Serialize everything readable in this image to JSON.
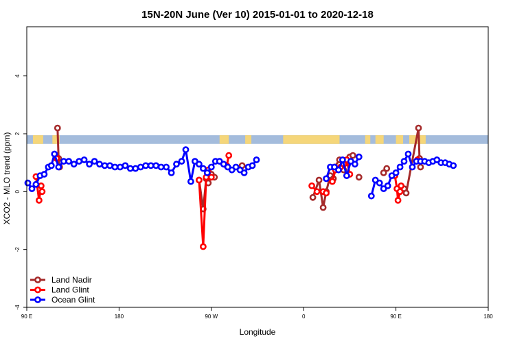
{
  "chart_data": {
    "type": "line",
    "title": "15N-20N June (Ver 10)   2015-01-01 to 2020-12-18",
    "xlabel": "Longitude",
    "ylabel": "XCO2 - MLO trend (ppm)",
    "x_ticks": [
      {
        "value": 90,
        "label": "90 E"
      },
      {
        "value": 180,
        "label": "180"
      },
      {
        "value": 270,
        "label": "90 W"
      },
      {
        "value": 360,
        "label": "0"
      },
      {
        "value": 450,
        "label": "90 E"
      },
      {
        "value": 540,
        "label": "180"
      }
    ],
    "y_ticks": [
      {
        "value": -4,
        "label": "-4"
      },
      {
        "value": -2,
        "label": "-2"
      },
      {
        "value": 0,
        "label": "0"
      },
      {
        "value": 2,
        "label": "2"
      },
      {
        "value": 4,
        "label": "4"
      }
    ],
    "xlim": [
      90,
      540
    ],
    "ylim": [
      -4,
      5.7
    ],
    "grid": false,
    "legend_position": "bottom-left",
    "land_strip": {
      "y_range": [
        1.65,
        1.95
      ],
      "ocean_color": "#a4bcdc",
      "land_color": "#f5d67a",
      "land_segments": [
        [
          96,
          106
        ],
        [
          115,
          122
        ],
        [
          278,
          287
        ],
        [
          303,
          309
        ],
        [
          340,
          395
        ],
        [
          420,
          425
        ],
        [
          430,
          438
        ],
        [
          450,
          457
        ],
        [
          463,
          479
        ]
      ]
    },
    "series": [
      {
        "name": "Land Nadir",
        "color": "#a52a2a",
        "segments": [
          [
            [
              120,
              2.2
            ],
            [
              121,
              1.15
            ],
            [
              122,
              0.85
            ]
          ],
          [
            [
              258,
              0.4
            ],
            [
              262,
              -0.6
            ],
            [
              265,
              0.45
            ],
            [
              267,
              0.3
            ],
            [
              270,
              0.6
            ],
            [
              273,
              0.5
            ]
          ],
          [
            [
              300,
              0.9
            ]
          ],
          [
            [
              369,
              -0.2
            ],
            [
              375,
              0.4
            ],
            [
              379,
              -0.55
            ],
            [
              382,
              0.0
            ],
            [
              386,
              0.55
            ],
            [
              389,
              0.45
            ],
            [
              390,
              0.85
            ],
            [
              395,
              1.1
            ],
            [
              399,
              0.75
            ],
            [
              402,
              1.0
            ],
            [
              405,
              1.2
            ],
            [
              408,
              1.25
            ]
          ],
          [
            [
              414,
              0.5
            ]
          ],
          [
            [
              438,
              0.65
            ],
            [
              441,
              0.8
            ]
          ],
          [
            [
              458,
              0.1
            ],
            [
              460,
              -0.05
            ],
            [
              472,
              2.2
            ],
            [
              473,
              1.15
            ],
            [
              474,
              0.85
            ]
          ]
        ]
      },
      {
        "name": "Land Glint",
        "color": "#ff0000",
        "segments": [
          [
            [
              99,
              0.52
            ],
            [
              102,
              -0.3
            ],
            [
              104,
              0.2
            ],
            [
              105,
              0.0
            ]
          ],
          [
            [
              119,
              1.15
            ]
          ],
          [
            [
              258,
              0.4
            ],
            [
              262,
              -1.9
            ],
            [
              265,
              0.5
            ],
            [
              267,
              0.75
            ],
            [
              270,
              0.5
            ]
          ],
          [
            [
              285,
              0.9
            ],
            [
              287,
              1.25
            ]
          ],
          [
            [
              368,
              0.2
            ],
            [
              373,
              0.0
            ],
            [
              379,
              0.0
            ],
            [
              382,
              -0.05
            ]
          ],
          [
            [
              388,
              0.35
            ],
            [
              391,
              0.75
            ]
          ],
          [
            [
              396,
              0.85
            ],
            [
              399,
              0.95
            ],
            [
              402,
              1.1
            ],
            [
              405,
              0.6
            ]
          ],
          [
            [
              449,
              0.55
            ],
            [
              451,
              0.1
            ],
            [
              452,
              -0.3
            ],
            [
              454,
              0.0
            ],
            [
              455,
              0.2
            ]
          ],
          [
            [
              471,
              1.1
            ]
          ]
        ]
      },
      {
        "name": "Ocean Glint",
        "color": "#0000ff",
        "segments": [
          [
            [
              91,
              0.3
            ],
            [
              95,
              0.1
            ],
            [
              99,
              0.25
            ],
            [
              103,
              0.55
            ],
            [
              107,
              0.6
            ],
            [
              111,
              0.85
            ],
            [
              114,
              0.9
            ],
            [
              117,
              1.3
            ],
            [
              121,
              0.85
            ],
            [
              126,
              1.05
            ],
            [
              131,
              1.05
            ],
            [
              136,
              0.95
            ],
            [
              141,
              1.05
            ],
            [
              146,
              1.1
            ],
            [
              151,
              0.95
            ],
            [
              156,
              1.05
            ],
            [
              161,
              0.95
            ],
            [
              166,
              0.9
            ],
            [
              171,
              0.9
            ],
            [
              176,
              0.85
            ],
            [
              181,
              0.85
            ],
            [
              186,
              0.9
            ],
            [
              191,
              0.8
            ],
            [
              196,
              0.8
            ],
            [
              201,
              0.85
            ],
            [
              206,
              0.9
            ],
            [
              211,
              0.9
            ],
            [
              216,
              0.9
            ],
            [
              221,
              0.85
            ],
            [
              226,
              0.85
            ],
            [
              231,
              0.65
            ],
            [
              236,
              0.95
            ],
            [
              241,
              1.05
            ],
            [
              245,
              1.45
            ],
            [
              250,
              0.35
            ],
            [
              254,
              1.05
            ],
            [
              258,
              0.95
            ],
            [
              262,
              0.8
            ],
            [
              266,
              0.65
            ],
            [
              270,
              0.85
            ],
            [
              274,
              1.05
            ],
            [
              278,
              1.05
            ],
            [
              282,
              0.95
            ],
            [
              286,
              0.85
            ],
            [
              290,
              0.75
            ],
            [
              294,
              0.85
            ],
            [
              298,
              0.75
            ],
            [
              302,
              0.65
            ],
            [
              306,
              0.85
            ],
            [
              310,
              0.9
            ],
            [
              314,
              1.1
            ]
          ],
          [
            [
              382,
              0.45
            ],
            [
              386,
              0.85
            ],
            [
              390,
              0.85
            ],
            [
              394,
              0.75
            ],
            [
              398,
              1.1
            ],
            [
              402,
              0.55
            ],
            [
              406,
              1.05
            ],
            [
              410,
              0.95
            ],
            [
              414,
              1.2
            ]
          ],
          [
            [
              426,
              -0.15
            ],
            [
              430,
              0.4
            ],
            [
              434,
              0.3
            ],
            [
              438,
              0.1
            ],
            [
              442,
              0.2
            ],
            [
              446,
              0.55
            ],
            [
              450,
              0.65
            ],
            [
              454,
              0.85
            ],
            [
              458,
              1.05
            ],
            [
              462,
              1.3
            ],
            [
              466,
              0.85
            ],
            [
              470,
              1.05
            ],
            [
              474,
              1.05
            ],
            [
              478,
              1.05
            ],
            [
              482,
              1.0
            ],
            [
              486,
              1.05
            ],
            [
              490,
              1.1
            ],
            [
              494,
              1.0
            ],
            [
              498,
              1.0
            ],
            [
              502,
              0.95
            ],
            [
              506,
              0.9
            ]
          ]
        ]
      }
    ]
  }
}
